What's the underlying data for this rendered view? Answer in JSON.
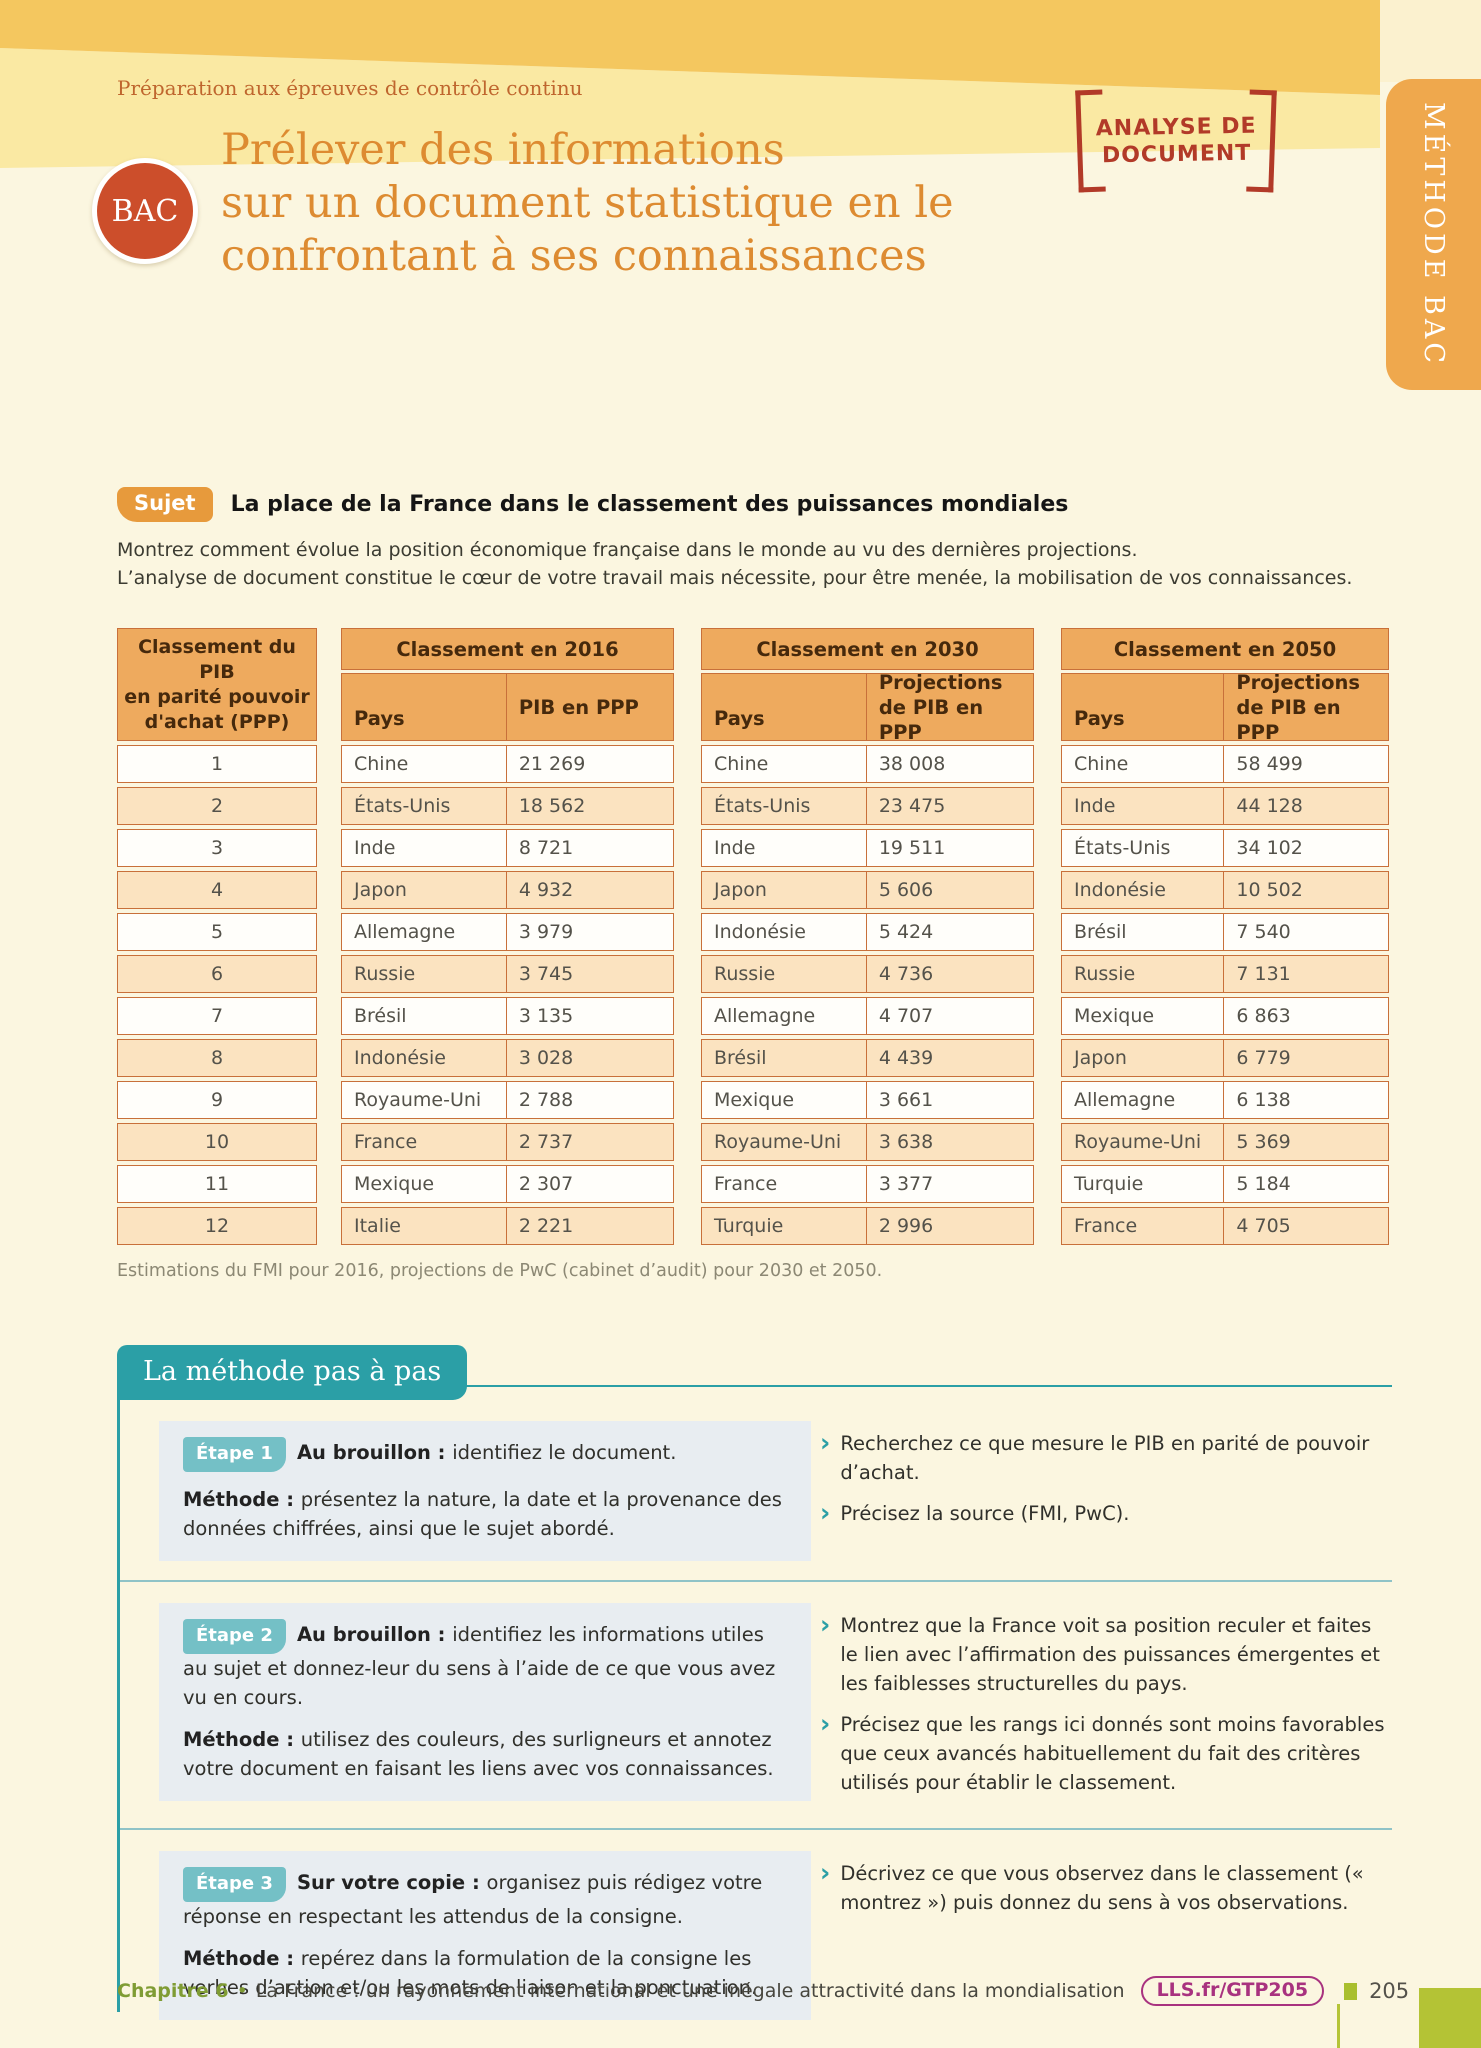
{
  "header": {
    "eyebrow": "Préparation aux épreuves de contrôle continu",
    "badge_line1": "ANALYSE DE",
    "badge_line2": "DOCUMENT",
    "side_tab": "MÉTHODE BAC",
    "bac_label": "BAC",
    "title_line1": "Prélever des informations",
    "title_line2": "sur un document statistique en le",
    "title_line3": "confrontant à ses connaissances"
  },
  "subject": {
    "label": "Sujet",
    "title": "La place de la France dans le classement des puissances mondiales",
    "intro_line1": "Montrez comment évolue la position économique française dans le monde au vu des dernières projections.",
    "intro_line2": "L’analyse de document constitue le cœur de votre travail mais nécessite, pour être menée, la mobilisation de vos connaissances."
  },
  "tables": {
    "rank_header_line1": "Classement du PIB",
    "rank_header_line2": "en parité pouvoir",
    "rank_header_line3": "d'achat (PPP)",
    "ranks": [
      "1",
      "2",
      "3",
      "4",
      "5",
      "6",
      "7",
      "8",
      "9",
      "10",
      "11",
      "12"
    ],
    "pays_label": "Pays",
    "groups": [
      {
        "title": "Classement en 2016",
        "value_label": "PIB en PPP",
        "rows": [
          [
            "Chine",
            "21 269"
          ],
          [
            "États-Unis",
            "18 562"
          ],
          [
            "Inde",
            "8 721"
          ],
          [
            "Japon",
            "4 932"
          ],
          [
            "Allemagne",
            "3 979"
          ],
          [
            "Russie",
            "3 745"
          ],
          [
            "Brésil",
            "3 135"
          ],
          [
            "Indonésie",
            "3 028"
          ],
          [
            "Royaume-Uni",
            "2 788"
          ],
          [
            "France",
            "2 737"
          ],
          [
            "Mexique",
            "2 307"
          ],
          [
            "Italie",
            "2 221"
          ]
        ]
      },
      {
        "title": "Classement en 2030",
        "value_label": "Projections de PIB en PPP",
        "rows": [
          [
            "Chine",
            "38 008"
          ],
          [
            "États-Unis",
            "23 475"
          ],
          [
            "Inde",
            "19 511"
          ],
          [
            "Japon",
            "5 606"
          ],
          [
            "Indonésie",
            "5 424"
          ],
          [
            "Russie",
            "4 736"
          ],
          [
            "Allemagne",
            "4 707"
          ],
          [
            "Brésil",
            "4 439"
          ],
          [
            "Mexique",
            "3 661"
          ],
          [
            "Royaume-Uni",
            "3 638"
          ],
          [
            "France",
            "3 377"
          ],
          [
            "Turquie",
            "2 996"
          ]
        ]
      },
      {
        "title": "Classement en 2050",
        "value_label": "Projections de PIB en PPP",
        "rows": [
          [
            "Chine",
            "58 499"
          ],
          [
            "Inde",
            "44 128"
          ],
          [
            "États-Unis",
            "34 102"
          ],
          [
            "Indonésie",
            "10 502"
          ],
          [
            "Brésil",
            "7 540"
          ],
          [
            "Russie",
            "7 131"
          ],
          [
            "Mexique",
            "6 863"
          ],
          [
            "Japon",
            "6 779"
          ],
          [
            "Allemagne",
            "6 138"
          ],
          [
            "Royaume-Uni",
            "5 369"
          ],
          [
            "Turquie",
            "5 184"
          ],
          [
            "France",
            "4 705"
          ]
        ]
      }
    ],
    "caption": "Estimations du FMI pour 2016, projections de PwC (cabinet d’audit) pour 2030 et 2050."
  },
  "method": {
    "header": "La méthode pas à pas",
    "steps": [
      {
        "badge": "Étape 1",
        "lead_bold": "Au brouillon :",
        "lead_text": "identifiez le document.",
        "method_bold": "Méthode :",
        "method_text": "présentez la nature, la date et la provenance des données chiffrées, ainsi que le sujet abordé.",
        "tips": [
          "Recherchez ce que mesure le PIB en parité de pouvoir d’achat.",
          "Précisez la source (FMI, PwC)."
        ]
      },
      {
        "badge": "Étape 2",
        "lead_bold": "Au brouillon :",
        "lead_text": "identifiez les informations utiles au sujet et donnez-leur du sens à l’aide de ce que vous avez vu en cours.",
        "method_bold": "Méthode :",
        "method_text": "utilisez des couleurs, des surligneurs et annotez votre document en faisant les liens avec vos connaissances.",
        "tips": [
          "Montrez que la France voit sa position reculer et faites le lien avec l’affirmation des puissances émergentes et les faiblesses structurelles du pays.",
          "Précisez que les rangs ici donnés sont moins favorables que ceux avancés habituellement du fait des critères utilisés pour établir le classement."
        ]
      },
      {
        "badge": "Étape 3",
        "lead_bold": "Sur votre copie :",
        "lead_text": "organisez puis rédigez votre réponse en respectant les attendus de la consigne.",
        "method_bold": "Méthode :",
        "method_text": "repérez dans la formulation de la consigne les verbes d’action et/ou les mots de liaison et la ponctuation.",
        "tips": [
          "Décrivez ce que vous observez dans le classement (« montrez ») puis donnez du sens à vos observations."
        ]
      }
    ]
  },
  "footer": {
    "chapter": "Chapitre 6",
    "separator": "•",
    "text": "La France : un rayonnement international et une inégale attractivité dans la mondialisation",
    "link": "LLS.fr/GTP205",
    "page_number": "205"
  },
  "colors": {
    "band_dark": "#f4c75f",
    "band_light": "#fae9a3",
    "page_bg": "#fbf6e0",
    "table_header_orange": "#eeaa5e",
    "table_row_peach": "#fbe3c0",
    "table_border": "#c8703a",
    "title_orange": "#dd8b31",
    "accent_red": "#b23a28",
    "bac_red": "#cc4e2b",
    "tab_orange": "#efa84d",
    "teal": "#2b9fa6",
    "step_panel_bg": "#e8edf1",
    "green": "#a9bf2e",
    "link_purple": "#a8327f"
  }
}
